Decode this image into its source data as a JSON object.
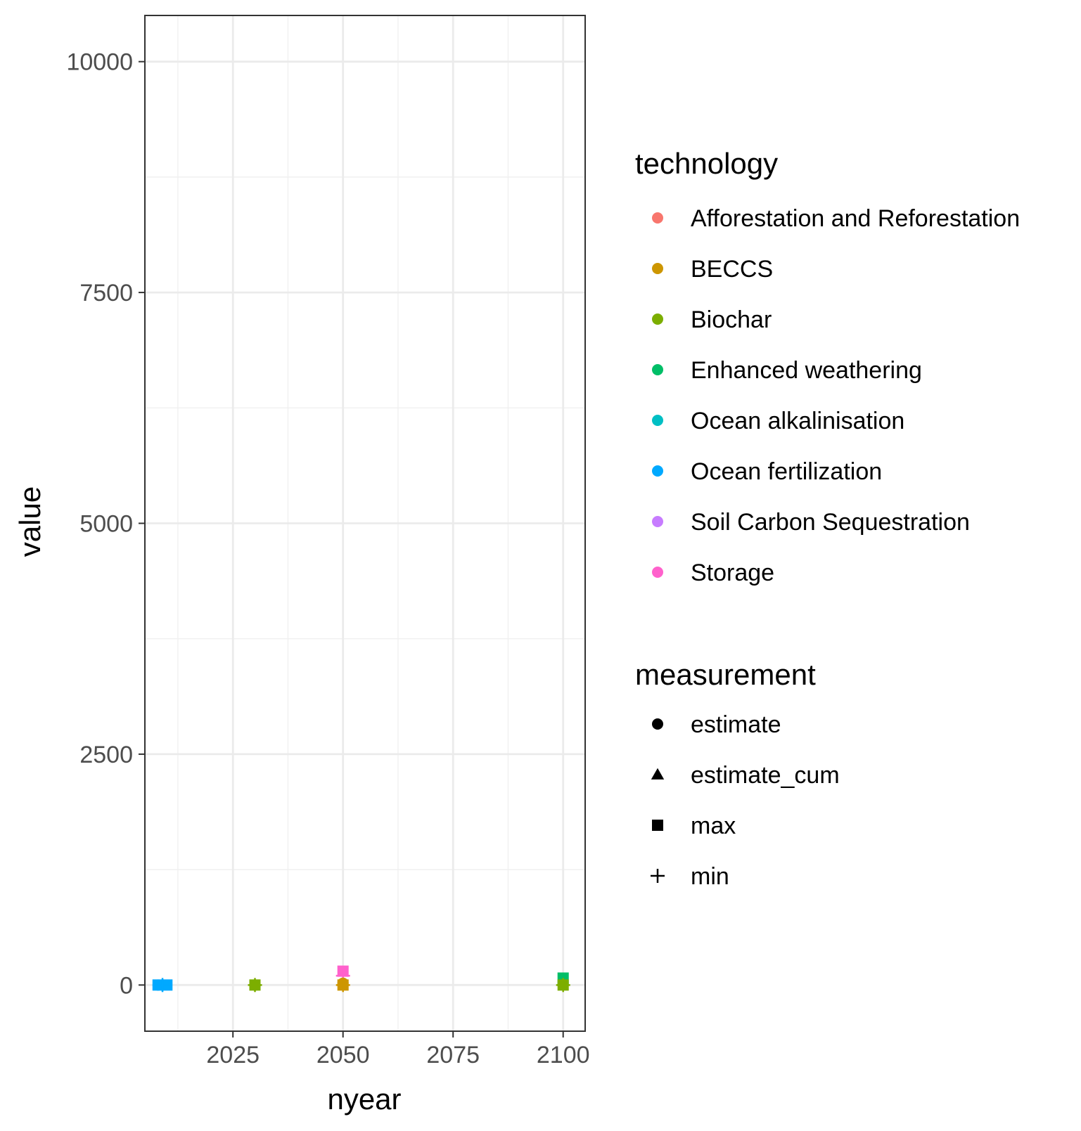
{
  "chart_data": {
    "type": "scatter",
    "xlabel": "nyear",
    "ylabel": "value",
    "xlim": [
      2005,
      2105
    ],
    "ylim": [
      -500,
      10500
    ],
    "x_ticks": [
      2025,
      2050,
      2075,
      2100
    ],
    "y_ticks": [
      0,
      2500,
      5000,
      7500,
      10000
    ],
    "grid": true,
    "legend_position": "right",
    "legends": {
      "technology": {
        "title": "technology",
        "entries": [
          {
            "name": "Afforestation and Reforestation",
            "color": "#F8766D"
          },
          {
            "name": "BECCS",
            "color": "#CD9600"
          },
          {
            "name": "Biochar",
            "color": "#7CAE00"
          },
          {
            "name": "Enhanced weathering",
            "color": "#00BE67"
          },
          {
            "name": "Ocean alkalinisation",
            "color": "#00BFC4"
          },
          {
            "name": "Ocean fertilization",
            "color": "#00A9FF"
          },
          {
            "name": "Soil Carbon Sequestration",
            "color": "#C77CFF"
          },
          {
            "name": "Storage",
            "color": "#FF61CC"
          }
        ]
      },
      "measurement": {
        "title": "measurement",
        "entries": [
          {
            "name": "estimate",
            "shape": "circle"
          },
          {
            "name": "estimate_cum",
            "shape": "triangle"
          },
          {
            "name": "max",
            "shape": "square"
          },
          {
            "name": "min",
            "shape": "plus"
          }
        ]
      }
    },
    "points": [
      {
        "x": 2008,
        "y": 0,
        "technology": "Ocean fertilization",
        "measurement": "estimate"
      },
      {
        "x": 2008,
        "y": 0,
        "technology": "Ocean fertilization",
        "measurement": "max"
      },
      {
        "x": 2010,
        "y": 0,
        "technology": "Ocean fertilization",
        "measurement": "max"
      },
      {
        "x": 2009,
        "y": 0,
        "technology": "Ocean fertilization",
        "measurement": "min"
      },
      {
        "x": 2030,
        "y": 0,
        "technology": "Biochar",
        "measurement": "estimate"
      },
      {
        "x": 2030,
        "y": 0,
        "technology": "Biochar",
        "measurement": "max"
      },
      {
        "x": 2030,
        "y": 0,
        "technology": "Biochar",
        "measurement": "min"
      },
      {
        "x": 2050,
        "y": 150,
        "technology": "Storage",
        "measurement": "max"
      },
      {
        "x": 2050,
        "y": 100,
        "technology": "Storage",
        "measurement": "min"
      },
      {
        "x": 2050,
        "y": 20,
        "technology": "BECCS",
        "measurement": "estimate"
      },
      {
        "x": 2050,
        "y": 0,
        "technology": "BECCS",
        "measurement": "max"
      },
      {
        "x": 2050,
        "y": 0,
        "technology": "BECCS",
        "measurement": "min"
      },
      {
        "x": 2100,
        "y": 75,
        "technology": "Enhanced weathering",
        "measurement": "max"
      },
      {
        "x": 2100,
        "y": 10,
        "technology": "Enhanced weathering",
        "measurement": "estimate"
      },
      {
        "x": 2100,
        "y": 0,
        "technology": "Biochar",
        "measurement": "max"
      },
      {
        "x": 2100,
        "y": 0,
        "technology": "Biochar",
        "measurement": "min"
      }
    ]
  }
}
